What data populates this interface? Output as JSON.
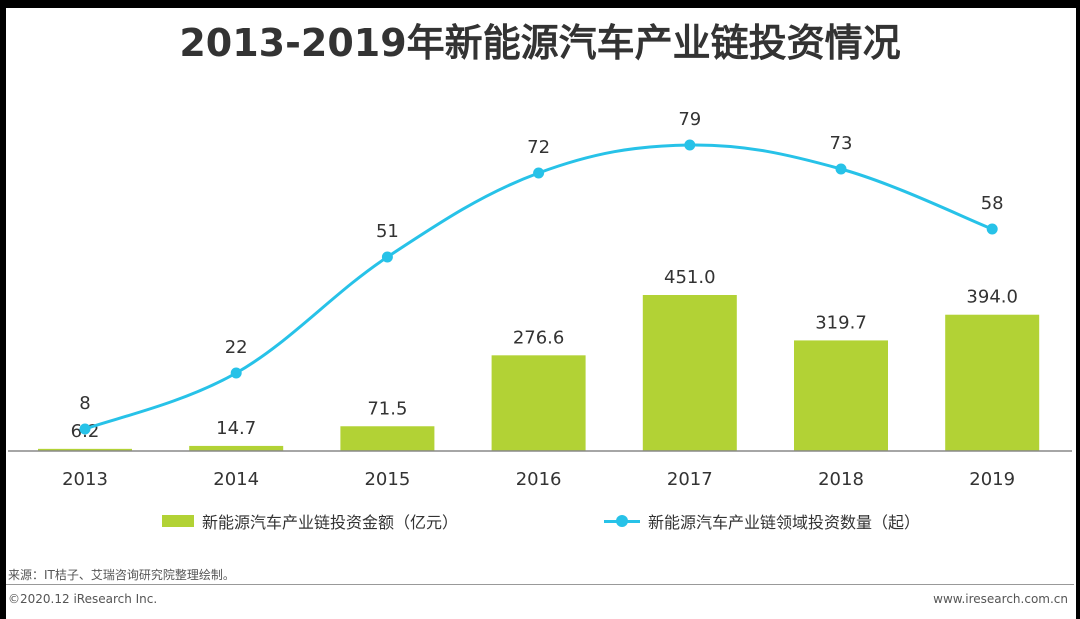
{
  "title": "2013-2019年新能源汽车产业链投资情况",
  "chart_data": {
    "type": "bar+line",
    "categories": [
      "2013",
      "2014",
      "2015",
      "2016",
      "2017",
      "2018",
      "2019"
    ],
    "series": [
      {
        "name": "新能源汽车产业链投资金额（亿元）",
        "type": "bar",
        "values": [
          6.2,
          14.7,
          71.5,
          276.6,
          451.0,
          319.7,
          394.0
        ],
        "labels": [
          "6.2",
          "14.7",
          "71.5",
          "276.6",
          "451.0",
          "319.7",
          "394.0"
        ],
        "color": "#b2d235"
      },
      {
        "name": "新能源汽车产业链领域投资数量（起）",
        "type": "line",
        "values": [
          8,
          22,
          51,
          72,
          79,
          73,
          58
        ],
        "labels": [
          "8",
          "22",
          "51",
          "72",
          "79",
          "73",
          "58"
        ],
        "color": "#27c2e8"
      }
    ],
    "bar_axis_max": 720,
    "line_axis_max": 100
  },
  "legend": {
    "bar_label": "新能源汽车产业链投资金额（亿元）",
    "line_label": "新能源汽车产业链领域投资数量（起）"
  },
  "footer": {
    "source": "来源：IT桔子、艾瑞咨询研究院整理绘制。",
    "copyright": "©2020.12 iResearch Inc.",
    "website": "www.iresearch.com.cn"
  }
}
